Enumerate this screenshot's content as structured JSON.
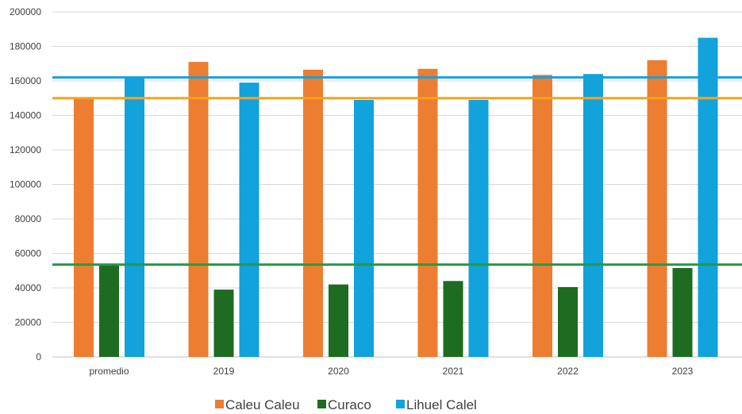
{
  "chart_data": {
    "type": "bar",
    "categories": [
      "promedio",
      "2019",
      "2020",
      "2021",
      "2022",
      "2023"
    ],
    "series": [
      {
        "name": "Caleu Caleu",
        "color": "#ED7D31",
        "values": [
          150000,
          171000,
          166500,
          167000,
          163500,
          172000
        ]
      },
      {
        "name": "Curaco",
        "color": "#1E6B22",
        "values": [
          53500,
          39000,
          42000,
          44000,
          40500,
          51500
        ]
      },
      {
        "name": "Lihuel Calel",
        "color": "#12A2DC",
        "values": [
          162000,
          159000,
          149000,
          149000,
          164000,
          185000
        ]
      }
    ],
    "reference_lines": [
      {
        "value": 162000,
        "color": "#12A2DC"
      },
      {
        "value": 150000,
        "color": "#F7A21B"
      },
      {
        "value": 53500,
        "color": "#249A46"
      }
    ],
    "yticks": [
      0,
      20000,
      40000,
      60000,
      80000,
      100000,
      120000,
      140000,
      160000,
      180000,
      200000
    ],
    "ylim": [
      0,
      200000
    ],
    "grid": true,
    "legend_position": "bottom"
  }
}
